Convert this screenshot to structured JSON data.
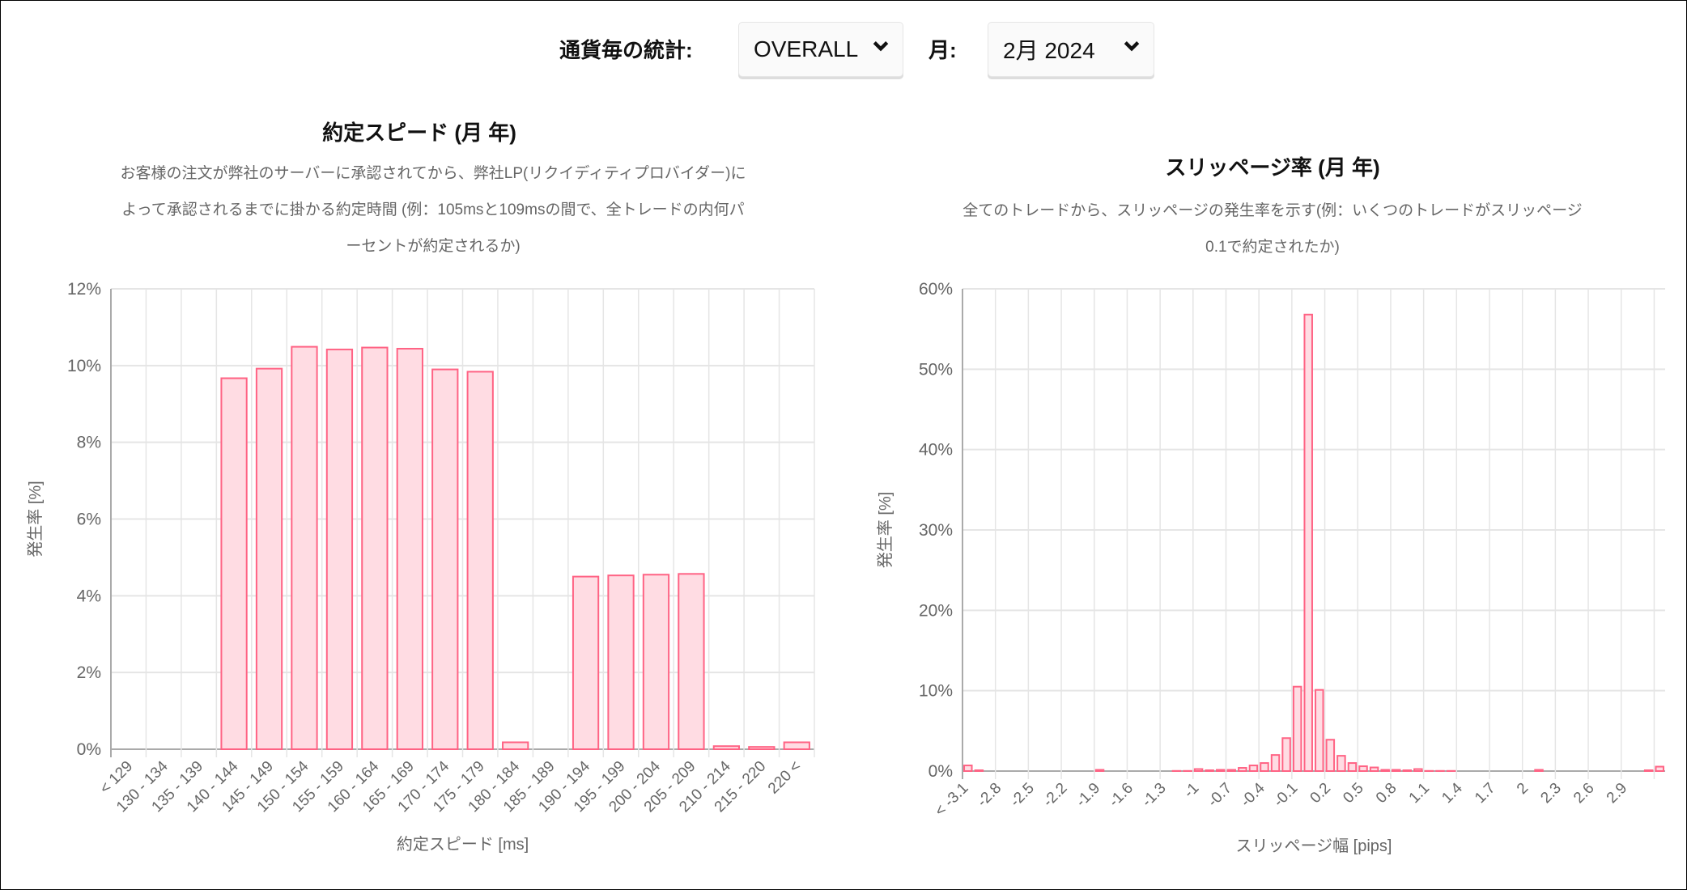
{
  "header": {
    "currency_label": "通貨毎の統計:",
    "currency_value": "OVERALL",
    "month_label": "月:",
    "month_value": "2月 2024",
    "chevron_icon": "chevron-down-icon"
  },
  "colors": {
    "bar_fill": "#ffdce3",
    "bar_stroke": "#ff6384",
    "grid": "#e5e5e5",
    "axis_text": "#666666"
  },
  "left_panel": {
    "title": "約定スピード (月 年)",
    "description": [
      "お客様の注文が弊社のサーバーに承認されてから、弊社LP(リクイディティプロバイダー)に",
      "よって承認されるまでに掛かる約定時間 (例：105msと109msの間で、全トレードの内何パ",
      "ーセントが約定されるか)"
    ]
  },
  "right_panel": {
    "title": "スリッページ率 (月 年)",
    "description": [
      "全てのトレードから、スリッページの発生率を示す(例：いくつのトレードがスリッページ",
      "0.1で約定されたか)"
    ]
  },
  "chart_data": [
    {
      "type": "bar",
      "xlabel": "約定スピード [ms]",
      "ylabel": "発生率 [%]",
      "ylim": [
        0,
        12
      ],
      "yticks": [
        "0%",
        "2%",
        "4%",
        "6%",
        "8%",
        "10%",
        "12%"
      ],
      "grid": true,
      "categories": [
        "< 129",
        "130 - 134",
        "135 - 139",
        "140 - 144",
        "145 - 149",
        "150 - 154",
        "155 - 159",
        "160 - 164",
        "165 - 169",
        "170 - 174",
        "175 - 179",
        "180 - 184",
        "185 - 189",
        "190 - 194",
        "195 - 199",
        "200 - 204",
        "205 - 209",
        "210 - 214",
        "215 - 220",
        "220 <"
      ],
      "values": [
        0,
        0,
        0,
        9.67,
        9.92,
        10.49,
        10.42,
        10.47,
        10.44,
        9.9,
        9.84,
        0.18,
        0,
        4.5,
        4.53,
        4.55,
        4.57,
        0.08,
        0.06,
        0.18
      ]
    },
    {
      "type": "bar",
      "xlabel": "スリッページ幅 [pips]",
      "ylabel": "発生率 [%]",
      "ylim": [
        0,
        60
      ],
      "yticks": [
        "0%",
        "10%",
        "20%",
        "30%",
        "40%",
        "50%",
        "60%"
      ],
      "grid": true,
      "tick_labels": [
        "< -3.1",
        "-2.8",
        "-2.5",
        "-2.2",
        "-1.9",
        "-1.6",
        "-1.3",
        "-1",
        "-0.7",
        "-0.4",
        "-0.1",
        "0.2",
        "0.5",
        "0.8",
        "1.1",
        "1.4",
        "1.7",
        "2",
        "2.3",
        "2.6",
        "2.9"
      ],
      "tick_every": 3,
      "values": [
        0.7,
        0.1,
        0,
        0,
        0,
        0,
        0,
        0,
        0,
        0,
        0,
        0,
        0.15,
        0,
        0,
        0,
        0,
        0,
        0,
        0.02,
        0.02,
        0.25,
        0.1,
        0.15,
        0.15,
        0.4,
        0.7,
        1.0,
        2.0,
        4.1,
        10.5,
        56.8,
        10.1,
        3.9,
        1.9,
        1.0,
        0.6,
        0.45,
        0.15,
        0.15,
        0.1,
        0.25,
        0.02,
        0.02,
        0.02,
        0,
        0,
        0,
        0,
        0,
        0,
        0,
        0.15,
        0,
        0,
        0,
        0,
        0,
        0,
        0,
        0,
        0,
        0.1,
        0.55
      ]
    }
  ]
}
